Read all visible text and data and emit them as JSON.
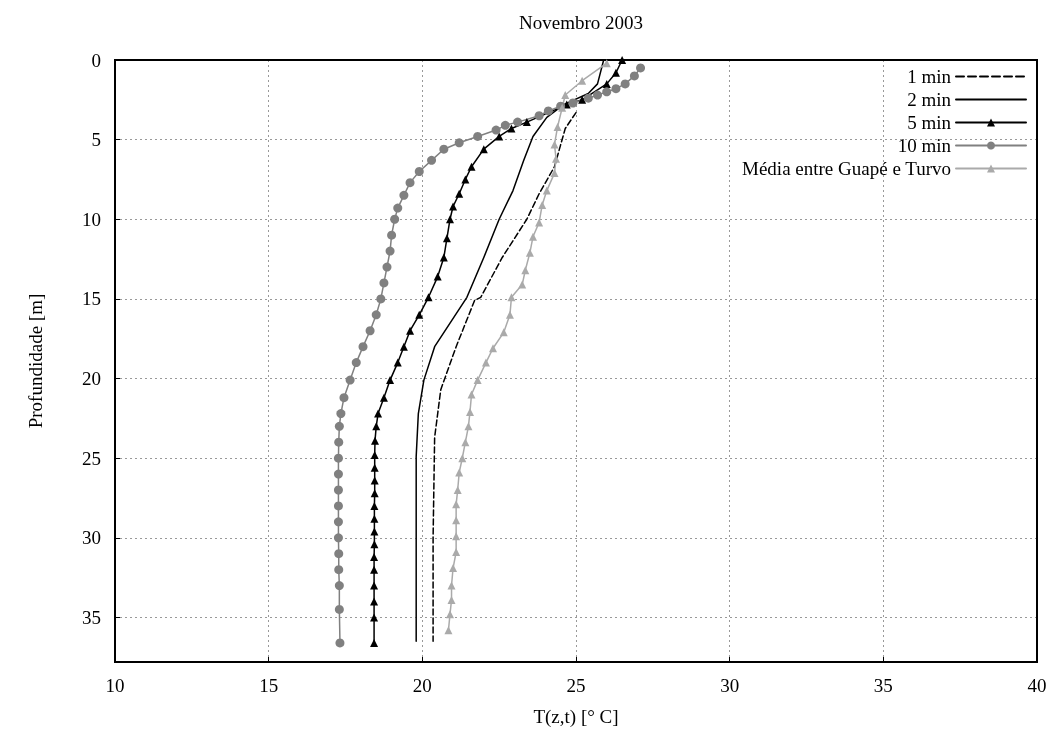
{
  "chart_data": {
    "type": "line",
    "title": "Novembro 2003",
    "xlabel": "T(z,t) [° C]",
    "ylabel": "Profundidade [m]",
    "xlim": [
      10,
      40
    ],
    "xticks": [
      10,
      15,
      20,
      25,
      30,
      35,
      40
    ],
    "ylim": [
      37.8,
      0
    ],
    "yticks": [
      0,
      5,
      10,
      15,
      20,
      25,
      30,
      35
    ],
    "grid": true,
    "legend": "top right",
    "series": [
      {
        "name": "1 min",
        "color": "#000000",
        "line_style": "dashed",
        "marker": "none",
        "x": [
          25.0,
          24.65,
          24.3,
          23.8,
          23.4,
          22.6,
          21.9,
          21.7,
          21.1,
          20.6,
          20.4,
          20.35,
          20.35
        ],
        "values": [
          3.3,
          4.3,
          6.7,
          8.4,
          10,
          12.4,
          14.9,
          15.1,
          18,
          20.7,
          23.7,
          30,
          36.5
        ]
      },
      {
        "name": "2 min",
        "color": "#000000",
        "line_style": "solid",
        "marker": "none",
        "x": [
          25.9,
          25.7,
          25.4,
          24.6,
          24.05,
          23.6,
          23.3,
          22.95,
          22.5,
          22.0,
          21.45,
          20.4,
          20.05,
          19.87,
          19.8,
          19.8
        ],
        "values": [
          0,
          1.5,
          2.1,
          2.8,
          3.6,
          4.8,
          6.3,
          8.2,
          10,
          12.4,
          14.9,
          18,
          20.1,
          22.2,
          24.9,
          36.5
        ]
      },
      {
        "name": "5 min",
        "color": "#000000",
        "line_style": "solid",
        "marker": "triangle",
        "x": [
          26.5,
          26.3,
          26.0,
          25.2,
          24.7,
          23.4,
          22.9,
          22.5,
          22.0,
          21.6,
          21.4,
          21.2,
          21.0,
          20.9,
          20.8,
          20.7,
          20.5,
          20.2,
          19.9,
          19.6,
          19.4,
          19.2,
          18.95,
          18.75,
          18.56,
          18.5,
          18.46,
          18.45,
          18.45,
          18.45,
          18.45,
          18.44,
          18.44,
          18.44,
          18.44,
          18.43,
          18.43,
          18.43,
          18.43,
          18.43,
          18.43
        ],
        "values": [
          0,
          0.8,
          1.5,
          2.5,
          2.8,
          3.9,
          4.3,
          4.8,
          5.6,
          6.7,
          7.5,
          8.4,
          9.2,
          10,
          11.2,
          12.4,
          13.6,
          14.9,
          16,
          17,
          18,
          19,
          20.1,
          21.2,
          22.2,
          23,
          23.9,
          24.8,
          25.6,
          26.4,
          27.2,
          28,
          28.8,
          29.6,
          30.4,
          31.2,
          32,
          33,
          34,
          35,
          36.6
        ]
      },
      {
        "name": "10 min",
        "color": "#808080",
        "line_style": "solid",
        "marker": "circle",
        "x": [
          27.1,
          26.9,
          26.6,
          26.3,
          26.0,
          25.7,
          25.4,
          24.9,
          24.5,
          24.1,
          23.8,
          23.1,
          22.7,
          22.4,
          21.8,
          21.2,
          20.7,
          20.3,
          19.9,
          19.6,
          19.4,
          19.2,
          19.1,
          19.0,
          18.95,
          18.85,
          18.75,
          18.65,
          18.5,
          18.3,
          18.07,
          17.85,
          17.65,
          17.45,
          17.35,
          17.3,
          17.28,
          17.27,
          17.27,
          17.27,
          17.27,
          17.27,
          17.27,
          17.28,
          17.28,
          17.3,
          17.3,
          17.32
        ],
        "values": [
          0.5,
          1.0,
          1.5,
          1.8,
          2.0,
          2.2,
          2.4,
          2.7,
          2.9,
          3.2,
          3.5,
          3.9,
          4.1,
          4.4,
          4.8,
          5.2,
          5.6,
          6.3,
          7.0,
          7.7,
          8.5,
          9.3,
          10,
          11,
          12,
          13,
          14,
          15,
          16,
          17,
          18,
          19,
          20.1,
          21.2,
          22.2,
          23,
          24,
          25,
          26,
          27,
          28,
          29,
          30,
          31,
          32,
          33,
          34.5,
          36.6
        ]
      },
      {
        "name": "Média entre Guapé e Turvo",
        "color": "#aaaaaa",
        "line_style": "solid",
        "marker": "triangle",
        "x": [
          26.0,
          25.2,
          24.65,
          24.55,
          24.4,
          24.3,
          24.35,
          24.3,
          24.05,
          23.9,
          23.8,
          23.6,
          23.5,
          23.35,
          23.25,
          22.9,
          22.85,
          22.65,
          22.3,
          22.07,
          21.8,
          21.6,
          21.55,
          21.5,
          21.4,
          21.3,
          21.2,
          21.15,
          21.1,
          21.1,
          21.1,
          21.1,
          21.0,
          20.95,
          20.95,
          20.9,
          20.85
        ],
        "values": [
          0.2,
          1.3,
          2.2,
          3.0,
          4.2,
          5.3,
          6.2,
          7.1,
          8.2,
          9.1,
          10.2,
          11.1,
          12.1,
          13.2,
          14.1,
          14.9,
          16.0,
          17.1,
          18.1,
          19.0,
          20.1,
          21.0,
          22.1,
          23.0,
          24.0,
          25.0,
          25.9,
          27.0,
          27.9,
          28.9,
          29.9,
          30.9,
          31.9,
          33.0,
          33.9,
          34.8,
          35.8
        ]
      }
    ]
  }
}
